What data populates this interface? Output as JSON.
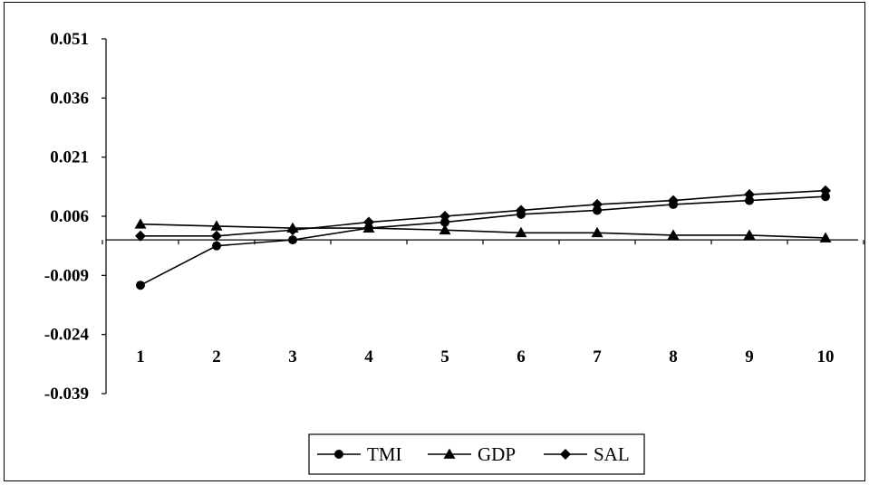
{
  "chart_data": {
    "type": "line",
    "title": "",
    "xlabel": "",
    "ylabel": "",
    "categories": [
      "1",
      "2",
      "3",
      "4",
      "5",
      "6",
      "7",
      "8",
      "9",
      "10"
    ],
    "y_ticks": [
      "0.051",
      "0.036",
      "0.021",
      "0.006",
      "-0.009",
      "-0.024",
      "-0.039"
    ],
    "ylim": [
      -0.039,
      0.051
    ],
    "grid": false,
    "legend_position": "bottom",
    "series": [
      {
        "name": "TMI",
        "marker": "circle",
        "values": [
          -0.0115,
          -0.0015,
          0.0,
          0.003,
          0.0045,
          0.0065,
          0.0075,
          0.009,
          0.01,
          0.011
        ]
      },
      {
        "name": "GDP",
        "marker": "triangle",
        "values": [
          0.004,
          0.0035,
          0.003,
          0.003,
          0.0025,
          0.0018,
          0.0018,
          0.0012,
          0.0012,
          0.0005
        ]
      },
      {
        "name": "SAL",
        "marker": "diamond",
        "values": [
          0.001,
          0.001,
          0.0025,
          0.0045,
          0.006,
          0.0075,
          0.009,
          0.01,
          0.0115,
          0.0125
        ]
      }
    ]
  }
}
